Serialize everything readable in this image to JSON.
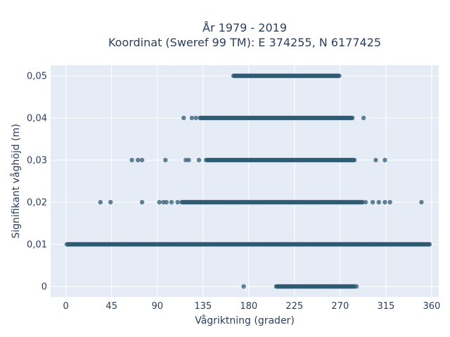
{
  "chart_data": {
    "type": "scatter",
    "title_line1": "År 1979 - 2019",
    "title_line2": "Koordinat (Sweref 99 TM): E 374255, N 6177425",
    "xlabel": "Vågriktning (grader)",
    "ylabel": "Signifikant våghöjd (m)",
    "xlim": [
      -15,
      367
    ],
    "ylim": [
      -0.0025,
      0.0525
    ],
    "x_ticks": [
      0,
      45,
      90,
      135,
      180,
      225,
      270,
      315,
      360
    ],
    "x_tick_labels": [
      "0",
      "45",
      "90",
      "135",
      "180",
      "225",
      "270",
      "315",
      "360"
    ],
    "y_ticks": [
      0,
      0.01,
      0.02,
      0.03,
      0.04,
      0.05
    ],
    "y_tick_labels": [
      "0",
      "0,01",
      "0,02",
      "0,03",
      "0,04",
      "0,05"
    ],
    "grid": true,
    "background": "#e5ecf6",
    "marker_color": "#2f5973",
    "marker_opacity": 0.75,
    "series": [
      {
        "y": 0,
        "dense_range": [
          207,
          284
        ],
        "isolated_x": [
          175,
          286
        ]
      },
      {
        "y": 0.01,
        "dense_range": [
          1,
          358
        ],
        "isolated_x": []
      },
      {
        "y": 0.02,
        "dense_range": [
          114,
          292
        ],
        "isolated_x": [
          34,
          44,
          75,
          92,
          96,
          99,
          104,
          110,
          295,
          302,
          308,
          314,
          319,
          350
        ]
      },
      {
        "y": 0.03,
        "dense_range": [
          138,
          284
        ],
        "isolated_x": [
          65,
          71,
          75,
          98,
          118,
          121,
          131,
          305,
          314
        ]
      },
      {
        "y": 0.04,
        "dense_range": [
          132,
          282
        ],
        "isolated_x": [
          116,
          124,
          128,
          293
        ]
      },
      {
        "y": 0.05,
        "dense_range": [
          165,
          269
        ],
        "isolated_x": []
      }
    ]
  }
}
